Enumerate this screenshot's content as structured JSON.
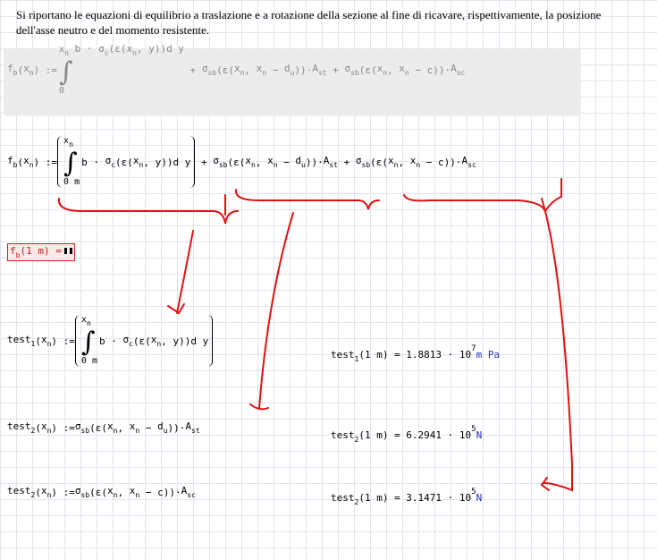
{
  "intro": "Si riportano le equazioni di equilibrio a traslazione e a rotazione della sezione al fine di ricavare, rispettivamente, la posizione dell'asse neutro e del momento resistente.",
  "equations": [
    {
      "lhs": [
        [
          "f",
          "b"
        ],
        "(",
        [
          "x",
          "n"
        ],
        ") :="
      ],
      "integral": {
        "upper": [
          "x",
          "n"
        ],
        "lower": "0",
        "body": [
          "b · ",
          [
            "σ",
            "c"
          ],
          "(ε(",
          [
            "x",
            "n"
          ],
          ", y))d y"
        ]
      },
      "rest": [
        " + ",
        [
          "σ",
          "sb"
        ],
        "(ε(",
        [
          "x",
          "n"
        ],
        ", ",
        [
          "x",
          "n"
        ],
        " − ",
        [
          "d",
          "u"
        ],
        "))·",
        [
          "A",
          "st"
        ],
        " + ",
        [
          "σ",
          "sb"
        ],
        "(ε(",
        [
          "x",
          "n"
        ],
        ", ",
        [
          "x",
          "n"
        ],
        " − c))·",
        [
          "A",
          "sc"
        ]
      ]
    },
    {
      "lhs": [
        [
          "f",
          "b"
        ],
        "(",
        [
          "x",
          "n"
        ],
        ") :="
      ],
      "integral": {
        "upper": [
          "x",
          "n"
        ],
        "lower": "0 m",
        "body": [
          "b · ",
          [
            "σ",
            "c"
          ],
          "(ε(",
          [
            "x",
            "n"
          ],
          ", y))d y"
        ]
      },
      "rest": [
        " + ",
        [
          "σ",
          "sb"
        ],
        "(ε(",
        [
          "x",
          "n"
        ],
        ", ",
        [
          "x",
          "n"
        ],
        " − ",
        [
          "d",
          "u"
        ],
        "))·",
        [
          "A",
          "st"
        ],
        " + ",
        [
          "σ",
          "sb"
        ],
        "(ε(",
        [
          "x",
          "n"
        ],
        ", ",
        [
          "x",
          "n"
        ],
        " − c))·",
        [
          "A",
          "sc"
        ]
      ]
    },
    {
      "lhs": [
        [
          "f",
          "b"
        ],
        "(1 m)",
        " ="
      ]
    },
    {
      "lhs": [
        [
          "test",
          "1"
        ],
        "(",
        [
          "x",
          "n"
        ],
        ") :="
      ],
      "integral": {
        "upper": [
          "x",
          "n"
        ],
        "lower": "0 m",
        "body": [
          "b · ",
          [
            "σ",
            "c"
          ],
          "(ε(",
          [
            "x",
            "n"
          ],
          ", y))d y"
        ]
      },
      "result": {
        "text": [
          [
            "test",
            "1"
          ],
          "(1 m) = 1.8813 · 10"
        ],
        "exponent": "7",
        "unit": "m Pa"
      }
    },
    {
      "lhs": [
        [
          "test",
          "2"
        ],
        "(",
        [
          "x",
          "n"
        ],
        ") :="
      ],
      "rest": [
        [
          "σ",
          "sb"
        ],
        "(ε(",
        [
          "x",
          "n"
        ],
        ", ",
        [
          "x",
          "n"
        ],
        " − ",
        [
          "d",
          "u"
        ],
        "))·",
        [
          "A",
          "st"
        ]
      ],
      "result": {
        "text": [
          [
            "test",
            "2"
          ],
          "(1 m) = 6.2941 · 10"
        ],
        "exponent": "5",
        "unit": "N"
      }
    },
    {
      "lhs": [
        [
          "test",
          "2"
        ],
        "(",
        [
          "x",
          "n"
        ],
        ") :="
      ],
      "rest": [
        [
          "σ",
          "sb"
        ],
        "(ε(",
        [
          "x",
          "n"
        ],
        ", ",
        [
          "x",
          "n"
        ],
        " − c))·",
        [
          "A",
          "sc"
        ]
      ],
      "result": {
        "text": [
          [
            "test",
            "2"
          ],
          "(1 m) = 3.1471 · 10"
        ],
        "exponent": "5",
        "unit": "N"
      }
    }
  ]
}
